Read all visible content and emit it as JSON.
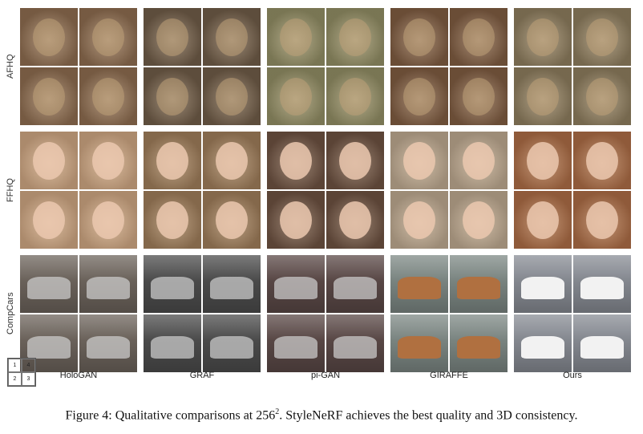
{
  "rows": [
    {
      "label": "AFHQ"
    },
    {
      "label": "FFHQ"
    },
    {
      "label": "CompCars"
    }
  ],
  "columns": [
    {
      "label": "HoloGAN"
    },
    {
      "label": "GRAF"
    },
    {
      "label": "pi-GAN"
    },
    {
      "label": "GIRAFFE"
    },
    {
      "label": "Ours"
    }
  ],
  "legend": [
    "1",
    "4",
    "2",
    "3"
  ],
  "caption": {
    "prefix": "Figure 4: Qualitative comparisons at 256",
    "superscript": "2",
    "suffix": ". StyleNeRF achieves the best quality and 3D consistency."
  },
  "palettes": {
    "AFHQ": [
      "#8a6a4e",
      "#6d5a46",
      "#8e8a62",
      "#7c5a40",
      "#8a7a5c"
    ],
    "FFHQ": [
      "#c9a27f",
      "#9b7a58",
      "#6b5040",
      "#b8a48c",
      "#a86a44"
    ],
    "CompCars": [
      "#6f665e",
      "#4e4e4e",
      "#5c4a48",
      "#7f8a86",
      "#8a8e96"
    ]
  }
}
